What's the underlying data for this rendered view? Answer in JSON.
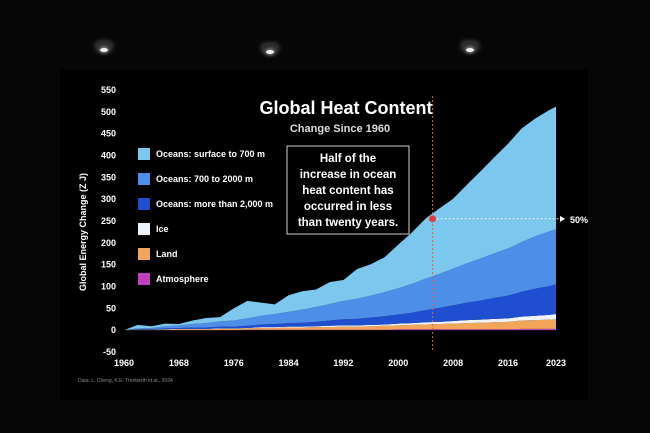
{
  "chart_data": {
    "type": "area",
    "title": "Global Heat Content",
    "subtitle": "Change Since 1960",
    "ylabel": "Global Energy Change (Z J)",
    "xlabel": "",
    "xlim": [
      1960,
      2023
    ],
    "ylim": [
      -50,
      550
    ],
    "x_ticks": [
      "1960",
      "1968",
      "1976",
      "1984",
      "1992",
      "2000",
      "2008",
      "2016",
      "2023"
    ],
    "y_ticks": [
      "550",
      "500",
      "450",
      "400",
      "350",
      "300",
      "250",
      "200",
      "150",
      "100",
      "50",
      "0",
      "-50"
    ],
    "stacked": true,
    "grid": false,
    "legend_position": "left",
    "x": [
      1960,
      1962,
      1964,
      1966,
      1968,
      1970,
      1972,
      1974,
      1976,
      1978,
      1980,
      1982,
      1984,
      1986,
      1988,
      1990,
      1992,
      1994,
      1996,
      1998,
      2000,
      2002,
      2004,
      2006,
      2008,
      2010,
      2012,
      2014,
      2016,
      2018,
      2020,
      2022,
      2023
    ],
    "series": [
      {
        "name": "Atmosphere",
        "color": "#c040c0",
        "values": [
          0,
          0,
          0,
          0,
          0,
          0,
          0,
          0,
          0,
          1,
          1,
          1,
          1,
          1,
          1,
          1,
          1,
          1,
          1,
          1,
          2,
          2,
          2,
          2,
          2,
          2,
          2,
          2,
          2,
          3,
          3,
          3,
          3
        ]
      },
      {
        "name": "Land",
        "color": "#f2a65a",
        "values": [
          0,
          1,
          1,
          1,
          2,
          2,
          2,
          3,
          3,
          3,
          4,
          4,
          5,
          5,
          6,
          6,
          7,
          7,
          8,
          9,
          9,
          10,
          11,
          12,
          13,
          14,
          15,
          16,
          17,
          19,
          20,
          21,
          22
        ]
      },
      {
        "name": "Ice",
        "color": "#eef4fa",
        "values": [
          0,
          0,
          0,
          1,
          1,
          1,
          1,
          1,
          1,
          1,
          2,
          2,
          2,
          2,
          2,
          3,
          3,
          3,
          3,
          3,
          4,
          4,
          5,
          5,
          6,
          7,
          7,
          8,
          8,
          9,
          10,
          11,
          12
        ]
      },
      {
        "name": "Oceans: more than 2,000 m",
        "color": "#1f4fd0",
        "values": [
          0,
          1,
          1,
          2,
          2,
          3,
          3,
          4,
          4,
          5,
          6,
          7,
          8,
          9,
          10,
          12,
          14,
          15,
          17,
          19,
          21,
          24,
          28,
          32,
          36,
          40,
          44,
          48,
          52,
          57,
          62,
          66,
          68
        ]
      },
      {
        "name": "Oceans: 700 to 2000 m",
        "color": "#4d8fe8",
        "values": [
          0,
          2,
          3,
          5,
          6,
          8,
          10,
          12,
          14,
          17,
          20,
          23,
          26,
          30,
          34,
          38,
          42,
          46,
          50,
          55,
          60,
          66,
          72,
          78,
          84,
          90,
          96,
          102,
          108,
          114,
          120,
          125,
          127
        ]
      },
      {
        "name": "Oceans: surface to 700 m",
        "color": "#7cc7ee",
        "values": [
          0,
          8,
          4,
          6,
          3,
          8,
          12,
          10,
          28,
          40,
          30,
          22,
          38,
          42,
          40,
          50,
          48,
          68,
          72,
          80,
          100,
          118,
          138,
          150,
          160,
          180,
          200,
          220,
          240,
          260,
          270,
          278,
          280
        ]
      }
    ],
    "legend": [
      {
        "label": "Oceans: surface to 700 m",
        "color": "#7cc7ee"
      },
      {
        "label": "Oceans: 700 to 2000 m",
        "color": "#4d8fe8"
      },
      {
        "label": "Oceans: more than 2,000 m",
        "color": "#1f4fd0"
      },
      {
        "label": "Ice",
        "color": "#eef4fa"
      },
      {
        "label": "Land",
        "color": "#f2a65a"
      },
      {
        "label": "Atmosphere",
        "color": "#c040c0"
      }
    ],
    "annotations": {
      "callout": [
        "Half of the",
        "increase in ocean",
        "heat content has",
        "occurred in less",
        "than twenty years."
      ],
      "marker_label": "50%",
      "marker_year": 2005,
      "marker_value": 255
    },
    "source": "Data: L. Cheng, K.E. Trenberth et al., 2024"
  }
}
